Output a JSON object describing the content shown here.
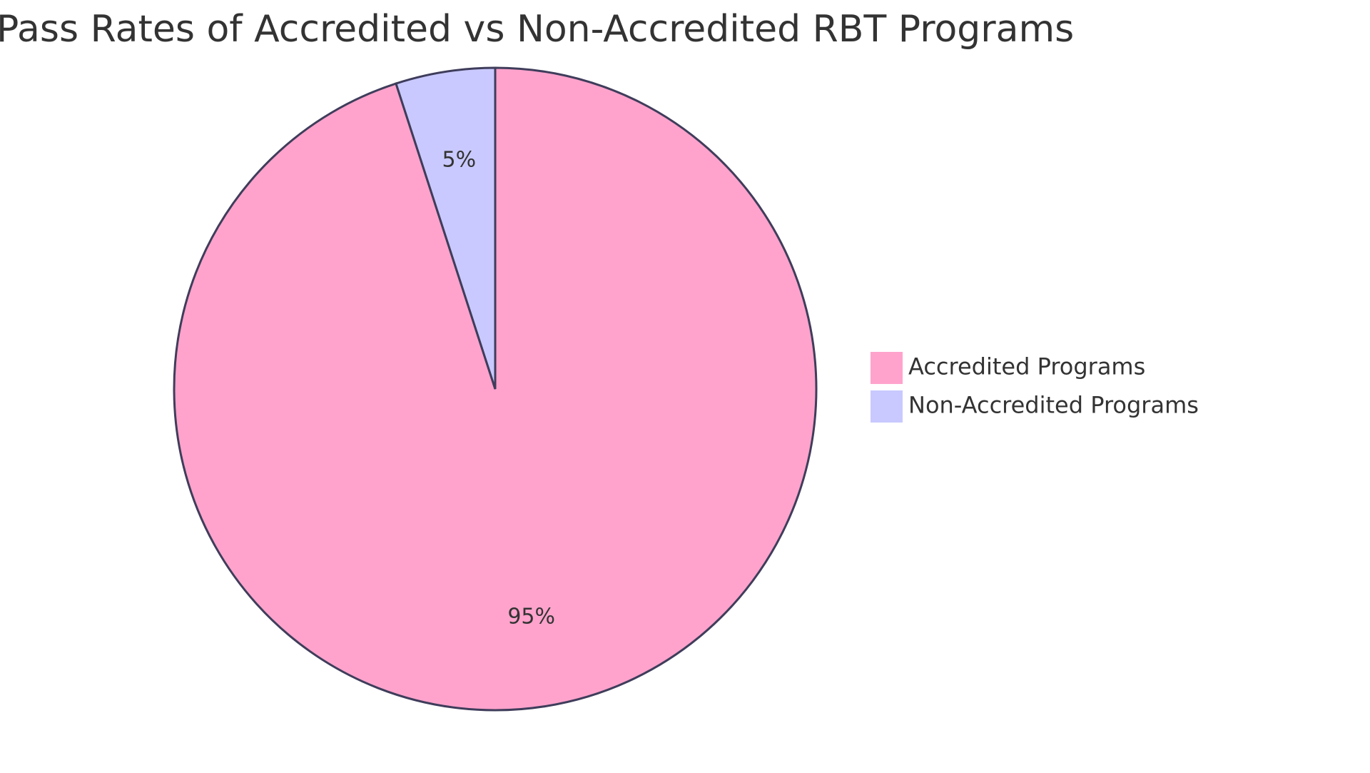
{
  "chart_data": {
    "type": "pie",
    "title": "Pass Rates of Accredited vs Non-Accredited RBT Programs",
    "slices": [
      {
        "label": "Accredited Programs",
        "value": 95,
        "display": "95%",
        "color": "#ffa3cc"
      },
      {
        "label": "Non-Accredited Programs",
        "value": 5,
        "display": "5%",
        "color": "#c9c9ff"
      }
    ],
    "start_angle_deg": 0,
    "direction": "clockwise",
    "legend_position": "right",
    "border_color": "#3f3d5b"
  }
}
